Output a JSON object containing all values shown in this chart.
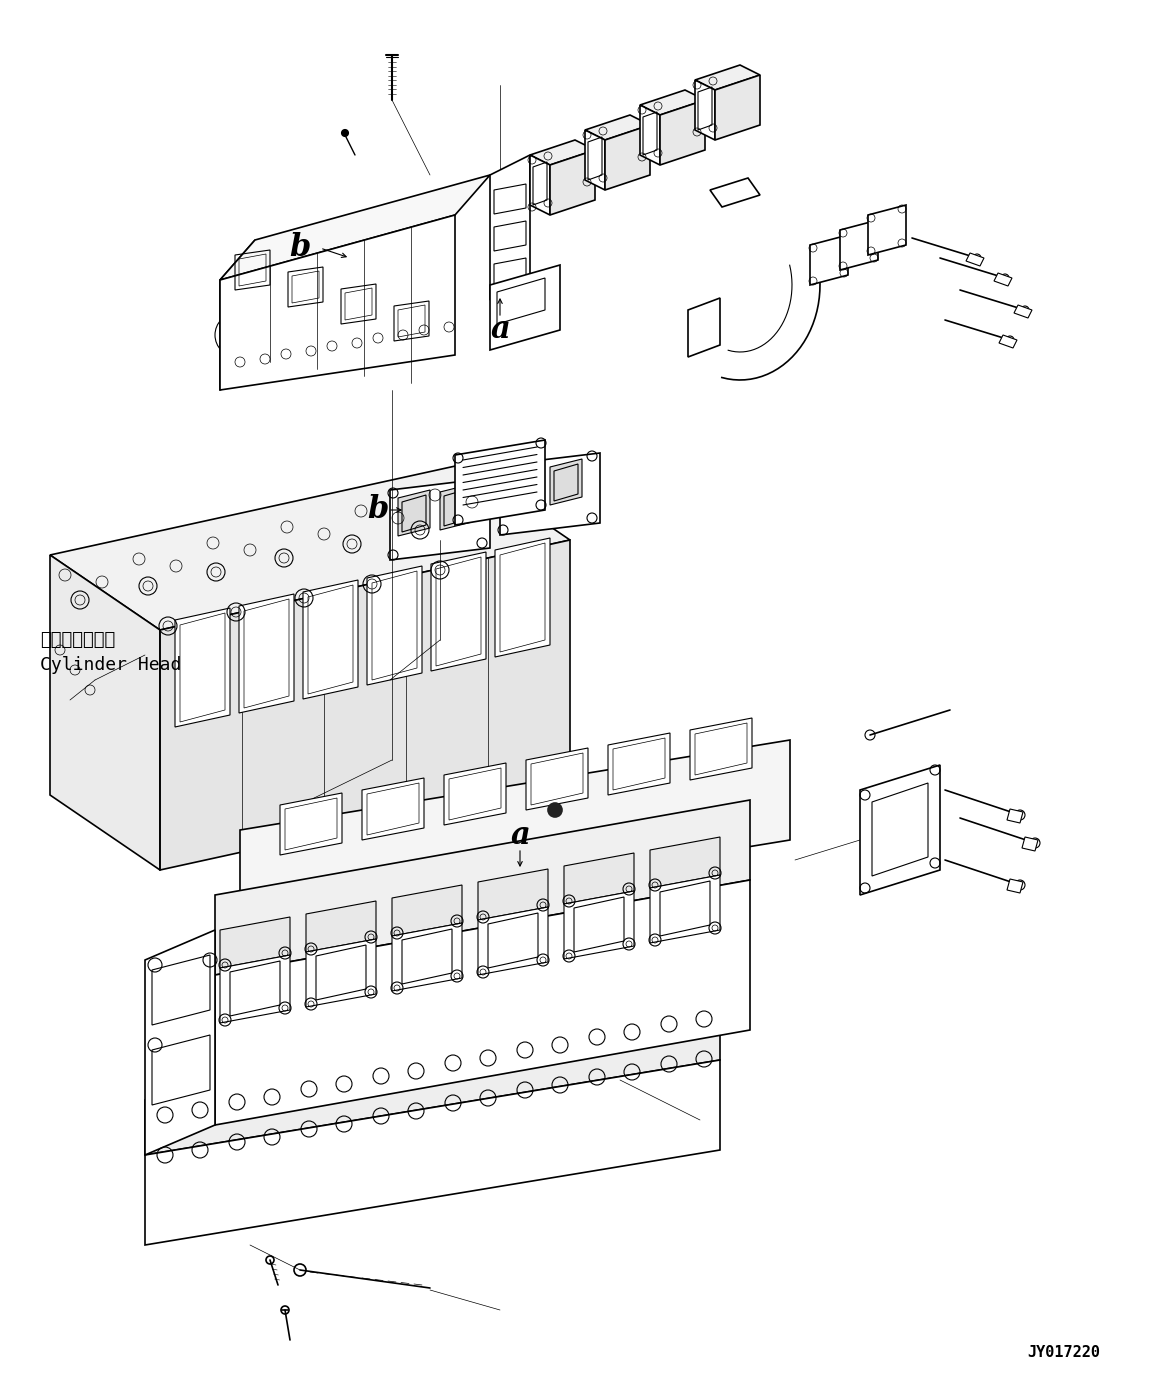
{
  "figure_width": 11.63,
  "figure_height": 13.94,
  "dpi": 100,
  "background_color": "#ffffff",
  "line_color": "#000000",
  "code": "JY017220",
  "label_cylinder_jp": "シリンダヘッド",
  "label_cylinder_en": "Cylinder Head"
}
